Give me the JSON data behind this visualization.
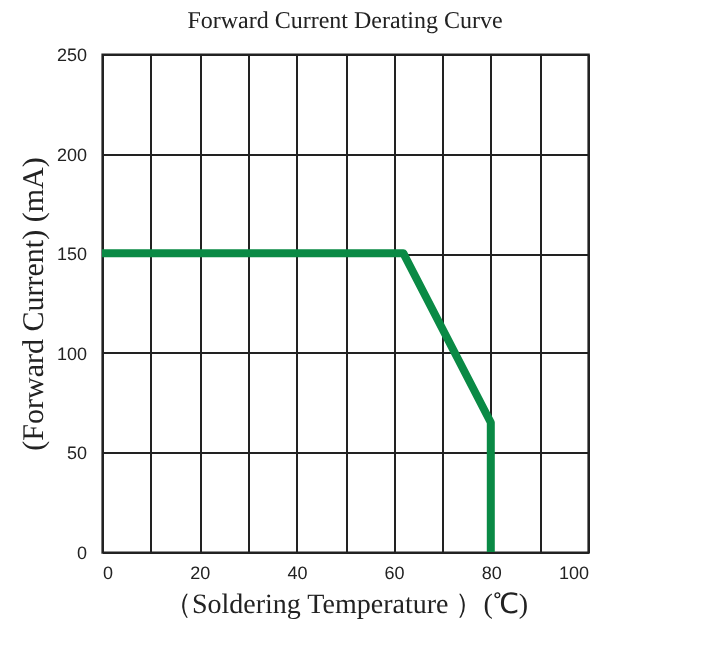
{
  "chart_data": {
    "type": "line",
    "title": "Forward Current Derating Curve",
    "xlabel": "（Soldering Temperature ）(℃)",
    "ylabel": "(Forward Current) (mA)",
    "x": [
      0,
      62,
      80,
      80
    ],
    "series": [
      {
        "color": "#0a8a45",
        "values": [
          150,
          150,
          65,
          0
        ]
      }
    ],
    "xlim": [
      0,
      100
    ],
    "xticks": [
      0,
      {
        "value": 10,
        "label": null
      },
      20,
      {
        "value": 30,
        "label": null
      },
      40,
      {
        "value": 50,
        "label": null
      },
      60,
      {
        "value": 70,
        "label": null
      },
      80,
      {
        "value": 90,
        "label": null
      },
      100
    ],
    "ylim": [
      0,
      250
    ],
    "yticks": [
      0,
      50,
      100,
      150,
      200,
      250
    ],
    "grid": true,
    "line_style": "solid",
    "marker": "none"
  }
}
